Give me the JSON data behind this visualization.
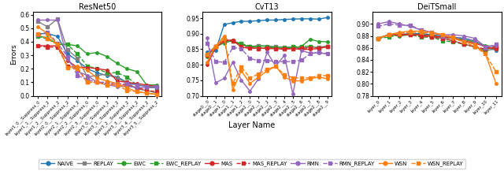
{
  "resnet50": {
    "title": "ResNet50",
    "ylim": [
      0.0,
      0.62
    ],
    "yticks": [
      0.0,
      0.1,
      0.2,
      0.3,
      0.4,
      0.5,
      0.6
    ],
    "xlabels": [
      "layer1_0_\nSuppress_0",
      "layer1_1_\nSuppress_2",
      "layer1_2_\nSuppress_2",
      "layer2_0_\nSuppress_2",
      "layer2_1_\nSuppress_2",
      "layer2_2_\nSuppress_0",
      "layer2_3_\nSuppress_0",
      "layer3_0_\nSuppress_2",
      "layer3_1_\nSuppress_2",
      "layer3_2_\nSuppress_2",
      "layer3_3_\nSuppress_2",
      "layer3_4_\nSuppress_2",
      "layer3_5_\nSuppress_2"
    ],
    "series": {
      "NAIVE": [
        0.46,
        0.46,
        0.44,
        0.31,
        0.26,
        0.2,
        0.17,
        0.15,
        0.14,
        0.1,
        0.08,
        0.07,
        0.06
      ],
      "REPLAY": [
        0.55,
        0.51,
        0.57,
        0.34,
        0.28,
        0.14,
        0.15,
        0.16,
        0.13,
        0.1,
        0.05,
        0.04,
        0.02
      ],
      "EWC": [
        0.44,
        0.43,
        0.38,
        0.38,
        0.37,
        0.31,
        0.32,
        0.29,
        0.24,
        0.2,
        0.18,
        0.08,
        0.08
      ],
      "EWC_REPLAY": [
        0.44,
        0.42,
        0.38,
        0.38,
        0.31,
        0.22,
        0.2,
        0.17,
        0.17,
        0.14,
        0.08,
        0.07,
        0.06
      ],
      "MAS": [
        0.37,
        0.37,
        0.37,
        0.26,
        0.21,
        0.21,
        0.2,
        0.19,
        0.11,
        0.1,
        0.09,
        0.08,
        0.07
      ],
      "MAS_REPLAY": [
        0.37,
        0.36,
        0.36,
        0.22,
        0.21,
        0.1,
        0.1,
        0.09,
        0.08,
        0.08,
        0.06,
        0.04,
        0.03
      ],
      "RMN": [
        0.56,
        0.56,
        0.56,
        0.27,
        0.18,
        0.15,
        0.1,
        0.08,
        0.07,
        0.07,
        0.06,
        0.06,
        0.06
      ],
      "RMN_REPLAY": [
        0.45,
        0.47,
        0.39,
        0.29,
        0.15,
        0.12,
        0.1,
        0.1,
        0.09,
        0.09,
        0.08,
        0.07,
        0.07
      ],
      "WSN": [
        0.51,
        0.46,
        0.38,
        0.21,
        0.22,
        0.19,
        0.13,
        0.11,
        0.09,
        0.06,
        0.03,
        0.02,
        0.01
      ],
      "WSN_REPLAY": [
        0.46,
        0.42,
        0.38,
        0.21,
        0.2,
        0.1,
        0.1,
        0.08,
        0.08,
        0.04,
        0.03,
        0.02,
        0.01
      ]
    }
  },
  "cvt13": {
    "title": "CvT13",
    "ylim": [
      0.7,
      0.97
    ],
    "yticks": [
      0.7,
      0.75,
      0.8,
      0.85,
      0.9,
      0.95
    ],
    "xlabels": [
      "stage0_\n0",
      "stage0_\n1",
      "stage1_\n0",
      "stage1_\n1",
      "stage1_\n2",
      "stage2_\n0",
      "stage2_\n1",
      "stage2_\n2",
      "stage2_\n3",
      "stage2_\n4",
      "stage2_\n5",
      "stage2_\n6",
      "stage2_\n7",
      "stage2_\n8",
      "stage2_\n9"
    ],
    "series": {
      "NAIVE": [
        0.84,
        0.845,
        0.93,
        0.935,
        0.94,
        0.94,
        0.942,
        0.944,
        0.944,
        0.946,
        0.947,
        0.948,
        0.948,
        0.947,
        0.952
      ],
      "REPLAY": [
        0.83,
        0.858,
        0.875,
        0.876,
        0.866,
        0.858,
        0.862,
        0.86,
        0.858,
        0.856,
        0.856,
        0.853,
        0.857,
        0.856,
        0.86
      ],
      "EWC": [
        0.826,
        0.858,
        0.87,
        0.878,
        0.864,
        0.858,
        0.86,
        0.86,
        0.856,
        0.857,
        0.854,
        0.859,
        0.882,
        0.875,
        0.874
      ],
      "EWC_REPLAY": [
        0.834,
        0.86,
        0.882,
        0.876,
        0.868,
        0.86,
        0.854,
        0.855,
        0.854,
        0.852,
        0.858,
        0.858,
        0.86,
        0.854,
        0.86
      ],
      "MAS": [
        0.8,
        0.855,
        0.877,
        0.88,
        0.856,
        0.853,
        0.854,
        0.852,
        0.852,
        0.85,
        0.852,
        0.849,
        0.85,
        0.852,
        0.858
      ],
      "MAS_REPLAY": [
        0.83,
        0.86,
        0.882,
        0.876,
        0.86,
        0.854,
        0.852,
        0.854,
        0.852,
        0.852,
        0.852,
        0.853,
        0.854,
        0.854,
        0.858
      ],
      "RMN": [
        0.886,
        0.742,
        0.756,
        0.808,
        0.75,
        0.715,
        0.755,
        0.84,
        0.795,
        0.83,
        0.706,
        0.845,
        0.838,
        0.838,
        0.835
      ],
      "RMN_REPLAY": [
        0.87,
        0.81,
        0.808,
        0.855,
        0.852,
        0.82,
        0.813,
        0.814,
        0.81,
        0.81,
        0.81,
        0.815,
        0.835,
        0.84,
        0.836
      ],
      "WSN": [
        0.808,
        0.86,
        0.893,
        0.72,
        0.78,
        0.74,
        0.76,
        0.78,
        0.795,
        0.76,
        0.748,
        0.748,
        0.755,
        0.76,
        0.755
      ],
      "WSN_REPLAY": [
        0.834,
        0.858,
        0.883,
        0.74,
        0.792,
        0.758,
        0.77,
        0.785,
        0.795,
        0.768,
        0.758,
        0.757,
        0.758,
        0.765,
        0.765
      ]
    }
  },
  "deitsmall": {
    "title": "DeiTSmall",
    "ylim": [
      0.78,
      0.92
    ],
    "yticks": [
      0.78,
      0.8,
      0.82,
      0.84,
      0.86,
      0.88,
      0.9
    ],
    "xlabels": [
      "layer\n0",
      "layer\n1",
      "layer\n2",
      "layer\n3",
      "layer\n4",
      "layer\n5",
      "layer\n6",
      "layer\n7",
      "layer\n8",
      "layer\n9",
      "layer\n10",
      "layer\n11"
    ],
    "series": {
      "NAIVE": [
        0.876,
        0.882,
        0.882,
        0.884,
        0.884,
        0.882,
        0.88,
        0.878,
        0.876,
        0.872,
        0.862,
        0.856
      ],
      "REPLAY": [
        0.876,
        0.882,
        0.882,
        0.884,
        0.882,
        0.878,
        0.876,
        0.872,
        0.866,
        0.862,
        0.856,
        0.858
      ],
      "EWC": [
        0.876,
        0.882,
        0.88,
        0.882,
        0.882,
        0.88,
        0.878,
        0.876,
        0.874,
        0.87,
        0.864,
        0.862
      ],
      "EWC_REPLAY": [
        0.876,
        0.878,
        0.882,
        0.882,
        0.878,
        0.878,
        0.872,
        0.87,
        0.866,
        0.862,
        0.854,
        0.862
      ],
      "MAS": [
        0.876,
        0.882,
        0.882,
        0.882,
        0.882,
        0.88,
        0.878,
        0.876,
        0.872,
        0.868,
        0.862,
        0.858
      ],
      "MAS_REPLAY": [
        0.876,
        0.882,
        0.882,
        0.882,
        0.88,
        0.878,
        0.876,
        0.872,
        0.866,
        0.862,
        0.858,
        0.862
      ],
      "RMN": [
        0.9,
        0.904,
        0.9,
        0.896,
        0.89,
        0.886,
        0.882,
        0.882,
        0.88,
        0.876,
        0.862,
        0.864
      ],
      "RMN_REPLAY": [
        0.896,
        0.9,
        0.898,
        0.898,
        0.89,
        0.886,
        0.88,
        0.878,
        0.876,
        0.872,
        0.86,
        0.866
      ],
      "WSN": [
        0.876,
        0.882,
        0.886,
        0.888,
        0.888,
        0.886,
        0.882,
        0.876,
        0.87,
        0.866,
        0.85,
        0.8
      ],
      "WSN_REPLAY": [
        0.876,
        0.882,
        0.884,
        0.886,
        0.886,
        0.884,
        0.882,
        0.878,
        0.87,
        0.862,
        0.85,
        0.82
      ]
    }
  },
  "legend": {
    "NAIVE": {
      "color": "#1f77b4",
      "linestyle": "-",
      "marker": "o"
    },
    "REPLAY": {
      "color": "#808080",
      "linestyle": "-",
      "marker": "s"
    },
    "EWC": {
      "color": "#2ca02c",
      "linestyle": "-",
      "marker": "o"
    },
    "EWC_REPLAY": {
      "color": "#2ca02c",
      "linestyle": "--",
      "marker": "s"
    },
    "MAS": {
      "color": "#d62728",
      "linestyle": "-",
      "marker": "o"
    },
    "MAS_REPLAY": {
      "color": "#d62728",
      "linestyle": "--",
      "marker": "s"
    },
    "RMN": {
      "color": "#9467bd",
      "linestyle": "-",
      "marker": "o"
    },
    "RMN_REPLAY": {
      "color": "#9467bd",
      "linestyle": "--",
      "marker": "s"
    },
    "WSN": {
      "color": "#ff7f0e",
      "linestyle": "-",
      "marker": "o"
    },
    "WSN_REPLAY": {
      "color": "#ff7f0e",
      "linestyle": "--",
      "marker": "s"
    }
  },
  "ylabel": "Errors",
  "xlabel": "Layer Name",
  "markersize": 2.5,
  "linewidth": 1.0
}
